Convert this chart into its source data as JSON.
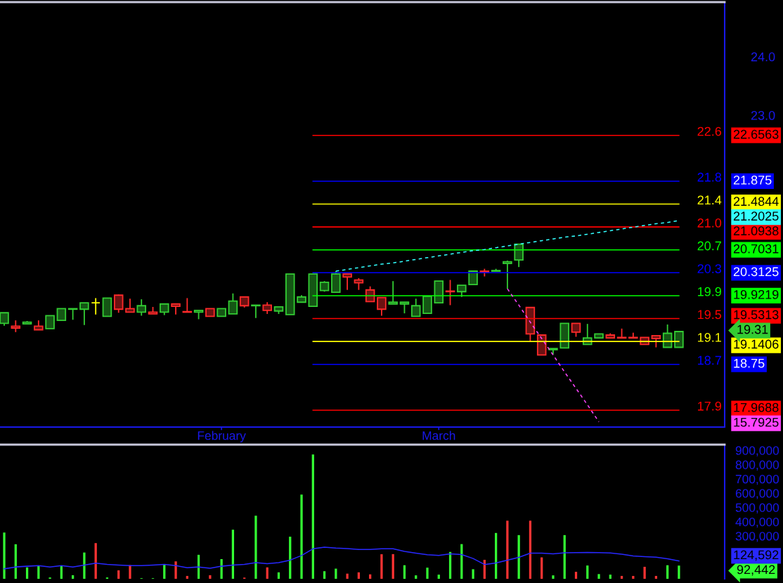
{
  "chart_data": [
    {
      "type": "candlestick",
      "categories": [
        null,
        null,
        null,
        null,
        null,
        null,
        null,
        null,
        null,
        null,
        null,
        null,
        null,
        null,
        null,
        null,
        null,
        null,
        null,
        "February",
        null,
        null,
        null,
        null,
        null,
        null,
        null,
        null,
        null,
        null,
        null,
        null,
        null,
        null,
        null,
        null,
        null,
        null,
        "March",
        null,
        null,
        null,
        null,
        null,
        null,
        null,
        null,
        null,
        null,
        null,
        null,
        null,
        null,
        null,
        null,
        null,
        null,
        null,
        null,
        null
      ],
      "ohlc": [
        [
          19.45,
          19.63,
          19.41,
          19.63
        ],
        [
          19.4,
          19.5,
          19.3,
          19.37
        ],
        [
          19.44,
          19.49,
          19.44,
          19.47
        ],
        [
          19.4,
          19.5,
          19.34,
          19.34
        ],
        [
          19.36,
          19.58,
          19.36,
          19.58
        ],
        [
          19.5,
          19.7,
          19.5,
          19.7
        ],
        [
          19.69,
          19.7,
          19.51,
          19.7
        ],
        [
          19.69,
          19.8,
          19.42,
          19.8
        ],
        [
          19.8,
          19.88,
          19.6,
          19.8
        ],
        [
          19.57,
          19.88,
          19.57,
          19.88
        ],
        [
          19.93,
          19.94,
          19.63,
          19.69
        ],
        [
          19.7,
          19.87,
          19.64,
          19.64
        ],
        [
          19.64,
          19.86,
          19.58,
          19.75
        ],
        [
          19.64,
          19.73,
          19.61,
          19.61
        ],
        [
          19.64,
          19.78,
          19.59,
          19.78
        ],
        [
          19.78,
          19.78,
          19.6,
          19.74
        ],
        [
          19.65,
          19.88,
          19.64,
          19.64
        ],
        [
          19.64,
          19.67,
          19.52,
          19.67
        ],
        [
          19.7,
          19.7,
          19.57,
          19.57
        ],
        [
          19.57,
          19.7,
          19.57,
          19.7
        ],
        [
          19.61,
          19.96,
          19.61,
          19.83
        ],
        [
          19.9,
          19.9,
          19.72,
          19.75
        ],
        [
          19.75,
          19.76,
          19.54,
          19.76
        ],
        [
          19.76,
          19.81,
          19.61,
          19.67
        ],
        [
          19.66,
          19.73,
          19.61,
          19.73
        ],
        [
          19.6,
          20.29,
          19.6,
          20.29
        ],
        [
          19.81,
          19.93,
          19.81,
          19.9
        ],
        [
          19.74,
          20.29,
          19.74,
          20.29
        ],
        [
          20.01,
          20.17,
          19.99,
          20.15
        ],
        [
          19.98,
          20.34,
          19.98,
          20.29
        ],
        [
          20.29,
          20.29,
          20.02,
          20.24
        ],
        [
          20.19,
          20.22,
          20.02,
          20.14
        ],
        [
          20.02,
          20.08,
          19.82,
          19.82
        ],
        [
          19.89,
          19.89,
          19.58,
          19.69
        ],
        [
          19.78,
          20.17,
          19.78,
          19.81
        ],
        [
          19.78,
          19.81,
          19.62,
          19.81
        ],
        [
          19.57,
          19.87,
          19.57,
          19.75
        ],
        [
          19.62,
          19.91,
          19.62,
          19.91
        ],
        [
          19.8,
          20.17,
          19.8,
          20.17
        ],
        [
          20.0,
          20.19,
          19.76,
          19.99
        ],
        [
          19.99,
          20.1,
          19.9,
          20.1
        ],
        [
          20.11,
          20.34,
          20.11,
          20.34
        ],
        [
          20.34,
          20.38,
          20.25,
          20.33
        ],
        [
          20.34,
          20.38,
          20.34,
          20.35
        ],
        [
          20.47,
          20.52,
          20.04,
          20.5
        ],
        [
          20.53,
          20.8,
          20.41,
          20.8
        ],
        [
          19.72,
          19.72,
          19.13,
          19.27
        ],
        [
          19.25,
          19.25,
          18.91,
          18.91
        ],
        [
          19.0,
          19.02,
          18.92,
          19.02
        ],
        [
          19.03,
          19.45,
          19.03,
          19.45
        ],
        [
          19.45,
          19.45,
          19.22,
          19.3
        ],
        [
          19.09,
          19.44,
          19.09,
          19.2
        ],
        [
          19.2,
          19.27,
          19.19,
          19.27
        ],
        [
          19.25,
          19.28,
          19.2,
          19.2
        ],
        [
          19.21,
          19.36,
          19.2,
          19.2
        ],
        [
          19.21,
          19.29,
          19.2,
          19.2
        ],
        [
          19.21,
          19.21,
          19.09,
          19.09
        ],
        [
          19.24,
          19.24,
          19.04,
          19.19
        ],
        [
          19.04,
          19.43,
          19.04,
          19.28
        ],
        [
          19.04,
          19.31,
          19.04,
          19.31
        ]
      ],
      "colors": [
        "#33cc33",
        "#ff2a2a",
        "#33cc33",
        "#ff2a2a",
        "#33cc33",
        "#33cc33",
        "#33cc33",
        "#33cc33",
        "#ffff00",
        "#33cc33",
        "#ff2a2a",
        "#ff2a2a",
        "#33cc33",
        "#ff2a2a",
        "#33cc33",
        "#ff2a2a",
        "#ff2a2a",
        "#33cc33",
        "#ff2a2a",
        "#33cc33",
        "#33cc33",
        "#ff2a2a",
        "#33cc33",
        "#ff2a2a",
        "#33cc33",
        "#33cc33",
        "#33cc33",
        "#33cc33",
        "#33cc33",
        "#33cc33",
        "#ff2a2a",
        "#ff2a2a",
        "#ff2a2a",
        "#ff2a2a",
        "#33cc33",
        "#33cc33",
        "#33cc33",
        "#33cc33",
        "#33cc33",
        "#ff2a2a",
        "#33cc33",
        "#33cc33",
        "#ff2a2a",
        "#33cc33",
        "#33cc33",
        "#33cc33",
        "#ff2a2a",
        "#ff2a2a",
        "#33cc33",
        "#33cc33",
        "#ff2a2a",
        "#33cc33",
        "#33cc33",
        "#ff2a2a",
        "#ff2a2a",
        "#ff2a2a",
        "#ff2a2a",
        "#ff2a2a",
        "#33cc33",
        "#33cc33"
      ],
      "series": [
        {
          "type": "line",
          "name": "22.6",
          "color": "#ff0000",
          "values": [
            null,
            null,
            null,
            null,
            null,
            null,
            null,
            null,
            null,
            null,
            null,
            null,
            null,
            null,
            null,
            null,
            null,
            null,
            null,
            null,
            null,
            null,
            null,
            null,
            null,
            null,
            null,
            22.6563,
            22.6563,
            22.6563,
            22.6563,
            22.6563,
            22.6563,
            22.6563,
            22.6563,
            22.6563,
            22.6563,
            22.6563,
            22.6563,
            22.6563,
            22.6563,
            22.6563,
            22.6563,
            22.6563,
            22.6563,
            22.6563,
            22.6563,
            22.6563,
            22.6563,
            22.6563,
            22.6563,
            22.6563,
            22.6563,
            22.6563,
            22.6563,
            22.6563,
            22.6563,
            22.6563,
            22.6563,
            22.6563
          ]
        },
        {
          "type": "line",
          "name": "21.8",
          "color": "#0000ff",
          "values": [
            null,
            null,
            null,
            null,
            null,
            null,
            null,
            null,
            null,
            null,
            null,
            null,
            null,
            null,
            null,
            null,
            null,
            null,
            null,
            null,
            null,
            null,
            null,
            null,
            null,
            null,
            null,
            21.875,
            21.875,
            21.875,
            21.875,
            21.875,
            21.875,
            21.875,
            21.875,
            21.875,
            21.875,
            21.875,
            21.875,
            21.875,
            21.875,
            21.875,
            21.875,
            21.875,
            21.875,
            21.875,
            21.875,
            21.875,
            21.875,
            21.875,
            21.875,
            21.875,
            21.875,
            21.875,
            21.875,
            21.875,
            21.875,
            21.875,
            21.875,
            21.875
          ]
        },
        {
          "type": "line",
          "name": "21.4",
          "color": "#ffff00",
          "values": [
            null,
            null,
            null,
            null,
            null,
            null,
            null,
            null,
            null,
            null,
            null,
            null,
            null,
            null,
            null,
            null,
            null,
            null,
            null,
            null,
            null,
            null,
            null,
            null,
            null,
            null,
            null,
            21.4844,
            21.4844,
            21.4844,
            21.4844,
            21.4844,
            21.4844,
            21.4844,
            21.4844,
            21.4844,
            21.4844,
            21.4844,
            21.4844,
            21.4844,
            21.4844,
            21.4844,
            21.4844,
            21.4844,
            21.4844,
            21.4844,
            21.4844,
            21.4844,
            21.4844,
            21.4844,
            21.4844,
            21.4844,
            21.4844,
            21.4844,
            21.4844,
            21.4844,
            21.4844,
            21.4844,
            21.4844,
            21.4844
          ]
        },
        {
          "type": "line",
          "name": "21.0",
          "color": "#ff0000",
          "values": [
            null,
            null,
            null,
            null,
            null,
            null,
            null,
            null,
            null,
            null,
            null,
            null,
            null,
            null,
            null,
            null,
            null,
            null,
            null,
            null,
            null,
            null,
            null,
            null,
            null,
            null,
            null,
            21.0938,
            21.0938,
            21.0938,
            21.0938,
            21.0938,
            21.0938,
            21.0938,
            21.0938,
            21.0938,
            21.0938,
            21.0938,
            21.0938,
            21.0938,
            21.0938,
            21.0938,
            21.0938,
            21.0938,
            21.0938,
            21.0938,
            21.0938,
            21.0938,
            21.0938,
            21.0938,
            21.0938,
            21.0938,
            21.0938,
            21.0938,
            21.0938,
            21.0938,
            21.0938,
            21.0938,
            21.0938,
            21.0938
          ]
        },
        {
          "type": "line",
          "name": "20.7",
          "color": "#00ff00",
          "values": [
            null,
            null,
            null,
            null,
            null,
            null,
            null,
            null,
            null,
            null,
            null,
            null,
            null,
            null,
            null,
            null,
            null,
            null,
            null,
            null,
            null,
            null,
            null,
            null,
            null,
            null,
            null,
            20.7031,
            20.7031,
            20.7031,
            20.7031,
            20.7031,
            20.7031,
            20.7031,
            20.7031,
            20.7031,
            20.7031,
            20.7031,
            20.7031,
            20.7031,
            20.7031,
            20.7031,
            20.7031,
            20.7031,
            20.7031,
            20.7031,
            20.7031,
            20.7031,
            20.7031,
            20.7031,
            20.7031,
            20.7031,
            20.7031,
            20.7031,
            20.7031,
            20.7031,
            20.7031,
            20.7031,
            20.7031,
            20.7031
          ]
        },
        {
          "type": "line",
          "name": "20.3",
          "color": "#0000ff",
          "values": [
            null,
            null,
            null,
            null,
            null,
            null,
            null,
            null,
            null,
            null,
            null,
            null,
            null,
            null,
            null,
            null,
            null,
            null,
            null,
            null,
            null,
            null,
            null,
            null,
            null,
            null,
            null,
            20.3125,
            20.3125,
            20.3125,
            20.3125,
            20.3125,
            20.3125,
            20.3125,
            20.3125,
            20.3125,
            20.3125,
            20.3125,
            20.3125,
            20.3125,
            20.3125,
            20.3125,
            20.3125,
            20.3125,
            20.3125,
            20.3125,
            20.3125,
            20.3125,
            20.3125,
            20.3125,
            20.3125,
            20.3125,
            20.3125,
            20.3125,
            20.3125,
            20.3125,
            20.3125,
            20.3125,
            20.3125,
            20.3125
          ]
        },
        {
          "type": "line",
          "name": "19.9",
          "color": "#00ff00",
          "values": [
            null,
            null,
            null,
            null,
            null,
            null,
            null,
            null,
            null,
            null,
            null,
            null,
            null,
            null,
            null,
            null,
            null,
            null,
            null,
            null,
            null,
            null,
            null,
            null,
            null,
            null,
            null,
            19.9219,
            19.9219,
            19.9219,
            19.9219,
            19.9219,
            19.9219,
            19.9219,
            19.9219,
            19.9219,
            19.9219,
            19.9219,
            19.9219,
            19.9219,
            19.9219,
            19.9219,
            19.9219,
            19.9219,
            19.9219,
            19.9219,
            19.9219,
            19.9219,
            19.9219,
            19.9219,
            19.9219,
            19.9219,
            19.9219,
            19.9219,
            19.9219,
            19.9219,
            19.9219,
            19.9219,
            19.9219,
            19.9219
          ]
        },
        {
          "type": "line",
          "name": "19.5",
          "color": "#ff0000",
          "values": [
            null,
            null,
            null,
            null,
            null,
            null,
            null,
            null,
            null,
            null,
            null,
            null,
            null,
            null,
            null,
            null,
            null,
            null,
            null,
            null,
            null,
            null,
            null,
            null,
            null,
            null,
            null,
            19.5313,
            19.5313,
            19.5313,
            19.5313,
            19.5313,
            19.5313,
            19.5313,
            19.5313,
            19.5313,
            19.5313,
            19.5313,
            19.5313,
            19.5313,
            19.5313,
            19.5313,
            19.5313,
            19.5313,
            19.5313,
            19.5313,
            19.5313,
            19.5313,
            19.5313,
            19.5313,
            19.5313,
            19.5313,
            19.5313,
            19.5313,
            19.5313,
            19.5313,
            19.5313,
            19.5313,
            19.5313,
            19.5313
          ]
        },
        {
          "type": "line",
          "name": "19.1",
          "color": "#ffff00",
          "values": [
            null,
            null,
            null,
            null,
            null,
            null,
            null,
            null,
            null,
            null,
            null,
            null,
            null,
            null,
            null,
            null,
            null,
            null,
            null,
            null,
            null,
            null,
            null,
            null,
            null,
            null,
            null,
            19.1406,
            19.1406,
            19.1406,
            19.1406,
            19.1406,
            19.1406,
            19.1406,
            19.1406,
            19.1406,
            19.1406,
            19.1406,
            19.1406,
            19.1406,
            19.1406,
            19.1406,
            19.1406,
            19.1406,
            19.1406,
            19.1406,
            19.1406,
            19.1406,
            19.1406,
            19.1406,
            19.1406,
            19.1406,
            19.1406,
            19.1406,
            19.1406,
            19.1406,
            19.1406,
            19.1406,
            19.1406,
            19.1406
          ]
        },
        {
          "type": "line",
          "name": "18.7",
          "color": "#0000ff",
          "values": [
            null,
            null,
            null,
            null,
            null,
            null,
            null,
            null,
            null,
            null,
            null,
            null,
            null,
            null,
            null,
            null,
            null,
            null,
            null,
            null,
            null,
            null,
            null,
            null,
            null,
            null,
            null,
            18.75,
            18.75,
            18.75,
            18.75,
            18.75,
            18.75,
            18.75,
            18.75,
            18.75,
            18.75,
            18.75,
            18.75,
            18.75,
            18.75,
            18.75,
            18.75,
            18.75,
            18.75,
            18.75,
            18.75,
            18.75,
            18.75,
            18.75,
            18.75,
            18.75,
            18.75,
            18.75,
            18.75,
            18.75,
            18.75,
            18.75,
            18.75,
            18.75
          ]
        },
        {
          "type": "line",
          "name": "17.9",
          "color": "#ff0000",
          "values": [
            null,
            null,
            null,
            null,
            null,
            null,
            null,
            null,
            null,
            null,
            null,
            null,
            null,
            null,
            null,
            null,
            null,
            null,
            null,
            null,
            null,
            null,
            null,
            null,
            null,
            null,
            null,
            17.9688,
            17.9688,
            17.9688,
            17.9688,
            17.9688,
            17.9688,
            17.9688,
            17.9688,
            17.9688,
            17.9688,
            17.9688,
            17.9688,
            17.9688,
            17.9688,
            17.9688,
            17.9688,
            17.9688,
            17.9688,
            17.9688,
            17.9688,
            17.9688,
            17.9688,
            17.9688,
            17.9688,
            17.9688,
            17.9688,
            17.9688,
            17.9688,
            17.9688,
            17.9688,
            17.9688,
            17.9688,
            17.9688
          ]
        },
        {
          "type": "line",
          "color": "#33ffff",
          "line_style": "dashed",
          "values": [
            null,
            null,
            null,
            null,
            null,
            null,
            null,
            null,
            null,
            null,
            null,
            null,
            null,
            null,
            null,
            null,
            null,
            null,
            null,
            null,
            null,
            null,
            null,
            null,
            null,
            null,
            null,
            null,
            null,
            20.34,
            20.37,
            20.4,
            20.43,
            20.46,
            20.48,
            20.51,
            20.54,
            20.57,
            20.6,
            20.63,
            20.66,
            20.69,
            20.71,
            20.74,
            20.77,
            20.8,
            20.83,
            20.86,
            20.89,
            20.92,
            20.94,
            20.97,
            21.0,
            21.03,
            21.06,
            21.09,
            21.12,
            21.15,
            21.17,
            21.2025
          ]
        },
        {
          "type": "line",
          "color": "#ff44ff",
          "line_style": "dashed",
          "values": [
            null,
            null,
            null,
            null,
            null,
            null,
            null,
            null,
            null,
            null,
            null,
            null,
            null,
            null,
            null,
            null,
            null,
            null,
            null,
            null,
            null,
            null,
            null,
            null,
            null,
            null,
            null,
            null,
            null,
            null,
            null,
            null,
            null,
            null,
            null,
            null,
            null,
            null,
            null,
            null,
            null,
            null,
            null,
            null,
            20.04,
            19.76,
            19.47,
            19.19,
            18.91,
            18.62,
            18.34,
            18.06,
            17.77,
            null,
            null,
            null,
            null,
            null,
            null,
            null
          ]
        }
      ],
      "legend": "right",
      "annotations": [
        "22.6563",
        "21.875",
        "21.4844",
        "21.0938",
        "20.7031",
        "20.3125",
        "19.9219",
        "19.5313",
        "19.1406",
        "18.75",
        "17.9688",
        "21.2025",
        "15.7925",
        "19.31"
      ],
      "ylim": [
        17.68,
        24.93
      ],
      "yticks": [
        {
          "value": 23,
          "label": "23.0"
        },
        {
          "value": 24,
          "label": "24.0"
        }
      ]
    },
    {
      "type": "bar",
      "categories": [
        null,
        null,
        null,
        null,
        null,
        null,
        null,
        null,
        null,
        null,
        null,
        null,
        null,
        null,
        null,
        null,
        null,
        null,
        null,
        null,
        null,
        null,
        null,
        null,
        null,
        null,
        null,
        null,
        null,
        null,
        null,
        null,
        null,
        null,
        null,
        null,
        null,
        null,
        null,
        null,
        null,
        null,
        null,
        null,
        null,
        null,
        null,
        null,
        null,
        null,
        null,
        null,
        null,
        null,
        null,
        null,
        null,
        null,
        null,
        null
      ],
      "series": [
        {
          "colors": [
            "#33ff33",
            "#33ff33",
            "#33ff33",
            "#33ff33",
            "#33ff33",
            "#33ff33",
            "#33ff33",
            "#33ff33",
            "#ff3333",
            "#33ff33",
            "#ff3333",
            "#ff3333",
            "#33ff33",
            "#33ff33",
            "#33ff33",
            "#ff3333",
            "#ff3333",
            "#33ff33",
            "#ff3333",
            "#33ff33",
            "#33ff33",
            "#ff3333",
            "#33ff33",
            "#ff3333",
            "#33ff33",
            "#33ff33",
            "#33ff33",
            "#33ff33",
            "#33ff33",
            "#33ff33",
            "#ff3333",
            "#ff3333",
            "#ff3333",
            "#ff3333",
            "#ff3333",
            "#33ff33",
            "#33ff33",
            "#33ff33",
            "#33ff33",
            "#33ff33",
            "#33ff33",
            "#33ff33",
            "#ff3333",
            "#33ff33",
            "#ff3333",
            "#33ff33",
            "#ff3333",
            "#ff3333",
            "#33ff33",
            "#33ff33",
            "#ff3333",
            "#33ff33",
            "#33ff33",
            "#33ff33",
            "#ff3333",
            "#ff3333",
            "#ff3333",
            "#ff3333",
            "#33ff33",
            "#33ff33"
          ],
          "values": [
            324000,
            242000,
            80000,
            89000,
            9000,
            92000,
            25000,
            184000,
            250000,
            9000,
            59000,
            96000,
            4000,
            4000,
            102000,
            122000,
            20000,
            168000,
            25000,
            138000,
            344000,
            8000,
            442000,
            80000,
            45000,
            295000,
            590000,
            871000,
            53000,
            71000,
            36000,
            45000,
            31000,
            172000,
            173000,
            95000,
            24000,
            78000,
            29000,
            188000,
            243000,
            67000,
            133000,
            321000,
            407000,
            306000,
            407000,
            150000,
            24000,
            306000,
            49000,
            93000,
            33000,
            29000,
            20000,
            20000,
            84000,
            20000,
            95000,
            92442
          ]
        },
        {
          "type": "line",
          "color": "#2828ff",
          "values": [
            70000,
            83000,
            88000,
            92000,
            83000,
            92000,
            83000,
            96000,
            110000,
            101000,
            96000,
            92000,
            92000,
            96000,
            101000,
            92000,
            78000,
            83000,
            74000,
            88000,
            96000,
            101000,
            113000,
            106000,
            113000,
            131000,
            163000,
            210000,
            222000,
            215000,
            212000,
            205000,
            205000,
            210000,
            210000,
            192000,
            180000,
            169000,
            164000,
            175000,
            170000,
            142000,
            100000,
            111000,
            130000,
            150000,
            180000,
            180000,
            175000,
            182000,
            183000,
            184000,
            183000,
            181000,
            172000,
            160000,
            155000,
            151000,
            140000,
            124592
          ]
        }
      ],
      "annotations": [
        "92,442",
        "124,592"
      ],
      "ylim": [
        0,
        940000
      ],
      "yticks": [
        {
          "value": 300000,
          "label": "300,000"
        },
        {
          "value": 400000,
          "label": "400,000"
        },
        {
          "value": 500000,
          "label": "500,000"
        },
        {
          "value": 600000,
          "label": "600,000"
        },
        {
          "value": 700000,
          "label": "700,000"
        },
        {
          "value": 800000,
          "label": "800,000"
        },
        {
          "value": 900000,
          "label": "900,000"
        }
      ],
      "tick_labels": "y"
    }
  ]
}
